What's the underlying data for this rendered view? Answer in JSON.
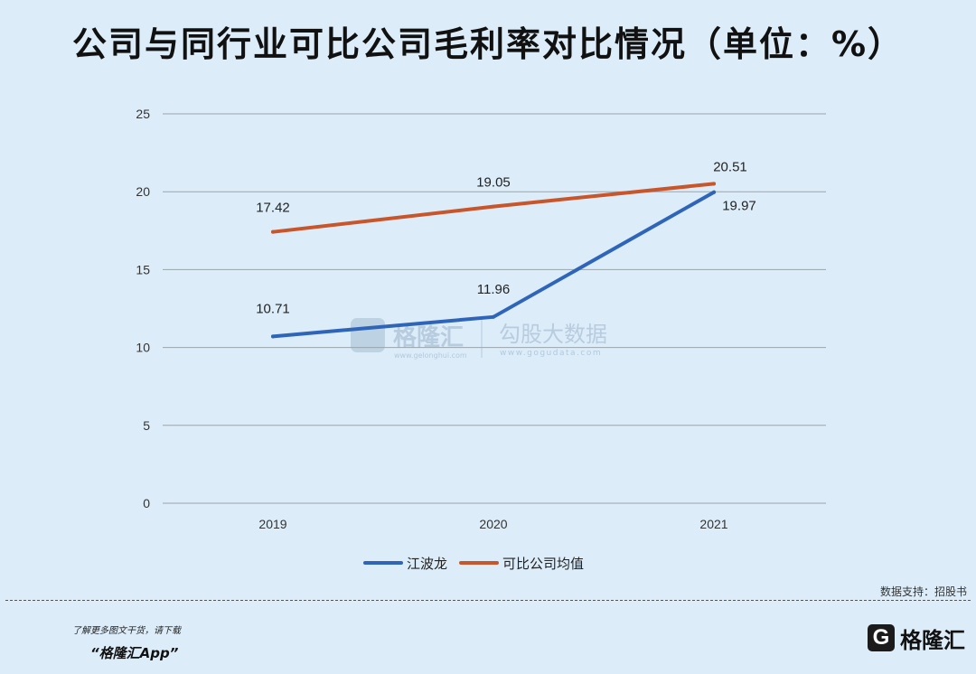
{
  "title": "公司与同行业可比公司毛利率对比情况（单位：%）",
  "chart_data": {
    "type": "line",
    "categories": [
      "2019",
      "2020",
      "2021"
    ],
    "series": [
      {
        "name": "江波龙",
        "values": [
          10.71,
          11.96,
          19.97
        ],
        "color": "#2f65b8"
      },
      {
        "name": "可比公司均值",
        "values": [
          17.42,
          19.05,
          20.51
        ],
        "color": "#c8562a"
      }
    ],
    "data_labels": {
      "江波龙": [
        "10.71",
        "11.96",
        "19.97"
      ],
      "可比公司均值": [
        "17.42",
        "19.05",
        "20.51"
      ]
    },
    "ylim": [
      0,
      25
    ],
    "yticks": [
      0,
      5,
      10,
      15,
      20,
      25
    ],
    "grid": "horizontal",
    "legend_position": "bottom",
    "xlabel": "",
    "ylabel": ""
  },
  "watermark": {
    "brand": "格隆汇",
    "brand_url": "www.gelonghui.com",
    "product": "勾股大数据",
    "product_url": "www.gogudata.com"
  },
  "source": "数据支持：招股书",
  "footer": {
    "promo": "了解更多图文干货，请下载",
    "app": "“格隆汇App”",
    "brand_mark": "G",
    "brand_text": "格隆汇"
  }
}
